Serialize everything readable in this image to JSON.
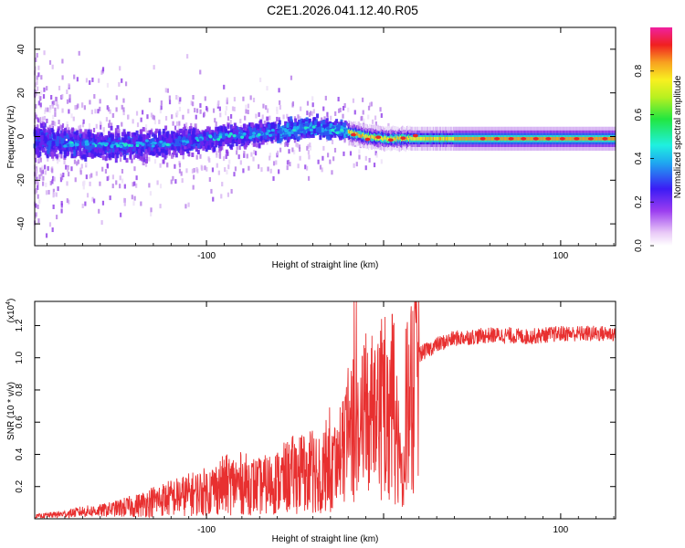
{
  "title": "C2E1.2026.041.12.40.R05",
  "chart_data": [
    {
      "type": "heatmap",
      "name": "spectrogram",
      "xlabel": "Height of straight line (km)",
      "ylabel": "Frequency (Hz)",
      "xlim": [
        -197,
        131
      ],
      "ylim": [
        -50,
        50
      ],
      "xticks": [
        -100,
        0,
        100
      ],
      "xtick_labels": [
        "-100",
        "",
        "100"
      ],
      "yticks": [
        -40,
        -20,
        0,
        20,
        40
      ],
      "ytick_labels": [
        "-40",
        "-20",
        "0",
        "20",
        "40"
      ],
      "colorbar": {
        "label": "Normalized spectral amplitude",
        "range": [
          0,
          1
        ],
        "ticks": [
          0.0,
          0.2,
          0.4,
          0.6,
          0.8
        ],
        "tick_labels": [
          "0.0",
          "0.2",
          "0.4",
          "0.6",
          "0.8"
        ]
      },
      "ridge_center_hz": [
        {
          "x": -190,
          "y": -3
        },
        {
          "x": -150,
          "y": -4
        },
        {
          "x": -120,
          "y": -3
        },
        {
          "x": -90,
          "y": 0
        },
        {
          "x": -60,
          "y": 2
        },
        {
          "x": -40,
          "y": 4
        },
        {
          "x": -25,
          "y": 3
        },
        {
          "x": -10,
          "y": 0
        },
        {
          "x": 0,
          "y": -1
        },
        {
          "x": 20,
          "y": -1
        },
        {
          "x": 60,
          "y": -1
        },
        {
          "x": 131,
          "y": -1
        }
      ]
    },
    {
      "type": "line",
      "name": "snr",
      "xlabel": "Height of straight line (km)",
      "ylabel": "SNR (10 * v/v)",
      "y_multiplier_label": "(x10",
      "y_multiplier_exp": "4",
      "y_multiplier_close": ")",
      "xlim": [
        -197,
        131
      ],
      "ylim": [
        0,
        13500
      ],
      "xticks": [
        -100,
        0,
        100
      ],
      "xtick_labels": [
        "-100",
        "",
        "100"
      ],
      "yticks": [
        2000,
        4000,
        6000,
        8000,
        10000,
        12000
      ],
      "ytick_labels": [
        "0.2",
        "0.4",
        "0.6",
        "0.8",
        "1.0",
        "1.2"
      ],
      "series_color": "#e83030",
      "series": [
        {
          "name": "SNR",
          "x": [
            -197,
            -180,
            -170,
            -160,
            -150,
            -140,
            -130,
            -120,
            -110,
            -100,
            -90,
            -80,
            -70,
            -60,
            -50,
            -40,
            -30,
            -25,
            -20,
            -18,
            -15,
            -10,
            -5,
            0,
            5,
            8,
            10,
            12,
            15,
            20,
            30,
            40,
            50,
            60,
            70,
            80,
            90,
            100,
            110,
            120,
            131
          ],
          "y": [
            150,
            300,
            450,
            500,
            650,
            800,
            1100,
            1300,
            1500,
            1700,
            2100,
            2200,
            2000,
            2300,
            2800,
            3000,
            3800,
            4800,
            6500,
            7500,
            6000,
            8000,
            9000,
            8500,
            9500,
            7000,
            2000,
            8500,
            9500,
            10200,
            10800,
            11200,
            11300,
            11400,
            11400,
            11300,
            11400,
            11500,
            11500,
            11500,
            11500
          ]
        }
      ]
    }
  ]
}
